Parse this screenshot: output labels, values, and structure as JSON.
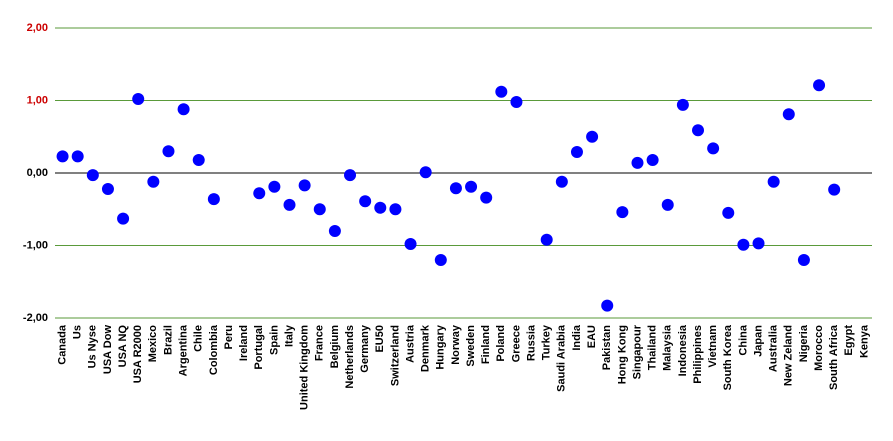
{
  "chart_data": {
    "type": "scatter",
    "categories": [
      "Canada",
      "Us",
      "Us Nyse",
      "USA Dow",
      "USA NQ",
      "USA R2000",
      "Mexico",
      "Brazil",
      "Argentina",
      "Chile",
      "Colombia",
      "Peru",
      "Ireland",
      "Portugal",
      "Spain",
      "Italy",
      "United Kingdom",
      "France",
      "Belgium",
      "Netherlands",
      "Germany",
      "EU50",
      "Switzerland",
      "Austria",
      "Denmark",
      "Hungary",
      "Norway",
      "Sweden",
      "Finland",
      "Poland",
      "Greece",
      "Russia",
      "Turkey",
      "Saudi Arabia",
      "India",
      "EAU",
      "Pakistan",
      "Hong Kong",
      "Singapour",
      "Thailand",
      "Malaysia",
      "Indonesia",
      "Philippines",
      "Vietnam",
      "South Korea",
      "China",
      "Japan",
      "Australia",
      "New Zeland",
      "Nigeria",
      "Morocco",
      "South Africa",
      "Egypt",
      "Kenya"
    ],
    "values": [
      0.23,
      0.23,
      -0.03,
      -0.22,
      -0.63,
      1.02,
      -0.12,
      0.3,
      0.88,
      0.18,
      -0.36,
      null,
      null,
      -0.28,
      -0.19,
      -0.44,
      -0.17,
      -0.5,
      -0.8,
      -0.03,
      -0.39,
      -0.48,
      -0.5,
      -0.98,
      0.01,
      -1.2,
      -0.21,
      -0.19,
      -0.34,
      1.12,
      0.98,
      null,
      -0.92,
      -0.12,
      0.29,
      0.5,
      -1.83,
      -0.54,
      0.14,
      0.18,
      -0.44,
      0.94,
      0.59,
      0.34,
      -0.55,
      -0.99,
      -0.97,
      -0.12,
      0.81,
      -1.2,
      1.21,
      -0.23,
      null,
      null
    ],
    "color": "#0000ff",
    "ylim": [
      -2,
      2
    ],
    "yticks": [
      {
        "value": -2,
        "label": "-2,00"
      },
      {
        "value": -1,
        "label": "-1,00"
      },
      {
        "value": 0,
        "label": "0,00"
      },
      {
        "value": 1,
        "label": "1,00"
      },
      {
        "value": 2,
        "label": "2,00"
      }
    ],
    "ytick_label_colors": [
      "#000000",
      "#000000",
      "#000000",
      "#cc0000",
      "#cc0000"
    ],
    "grid": true,
    "grid_color": "#5a9a3a",
    "zero_line_color": "#000000"
  }
}
